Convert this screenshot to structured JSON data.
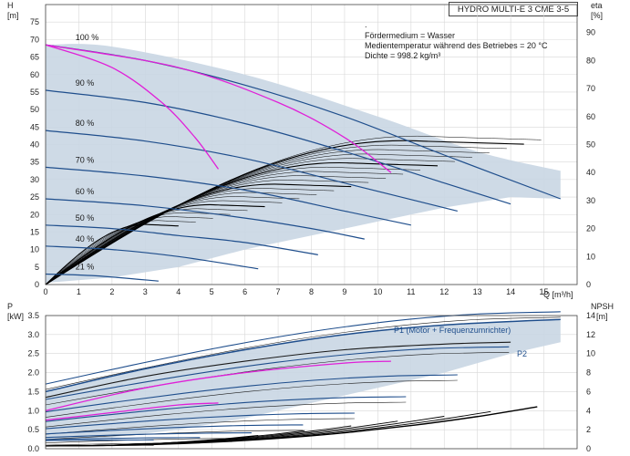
{
  "title": "HYDRO MULTI-E 3 CME 3-5",
  "info": {
    "dot": ".",
    "line1": "Fördermedium = Wasser",
    "line2": "Medientemperatur während des Betriebes = 20 °C",
    "line3": "Dichte = 998.2 kg/m³"
  },
  "colors": {
    "envelope": "#c9d6e3",
    "speed_curve": "#1f4e8c",
    "efficiency_curve": "#000000",
    "npsh_curve": "#000000",
    "highlight": "#e020d8"
  },
  "chart_data": [
    {
      "type": "line",
      "name": "head",
      "ylabel_top": "H",
      "ylabel_unit": "[m]",
      "y2label_top": "eta",
      "y2label_unit": "[%]",
      "xlabel": "Q [m³/h]",
      "xlim": [
        0,
        16
      ],
      "ylim": [
        0,
        80
      ],
      "y2lim": [
        0,
        100
      ],
      "xticks": [
        "0",
        "1",
        "2",
        "3",
        "4",
        "5",
        "6",
        "7",
        "8",
        "9",
        "10",
        "11",
        "12",
        "13",
        "14",
        "15"
      ],
      "yticks": [
        "0",
        "5",
        "10",
        "15",
        "20",
        "25",
        "30",
        "35",
        "40",
        "45",
        "50",
        "55",
        "60",
        "65",
        "70",
        "75"
      ],
      "y2ticks": [
        "0",
        "10",
        "20",
        "30",
        "40",
        "50",
        "60",
        "70",
        "80",
        "90"
      ],
      "grid": true,
      "speed_labels": [
        "100 %",
        "90 %",
        "80 %",
        "70 %",
        "60 %",
        "50 %",
        "40 %",
        "21 %"
      ],
      "speed_curves": [
        {
          "speed": 100,
          "x": [
            0,
            3,
            6,
            9,
            12,
            15.5
          ],
          "y": [
            68.5,
            64,
            57,
            48,
            37,
            24.5
          ]
        },
        {
          "speed": 90,
          "x": [
            0,
            3,
            6,
            9,
            12,
            14
          ],
          "y": [
            55.5,
            52,
            46,
            38,
            29,
            23
          ]
        },
        {
          "speed": 80,
          "x": [
            0,
            3,
            6,
            9,
            12.4
          ],
          "y": [
            44,
            41,
            36,
            29,
            21
          ]
        },
        {
          "speed": 70,
          "x": [
            0,
            3,
            6,
            9,
            11
          ],
          "y": [
            33.5,
            31,
            27,
            21,
            17
          ]
        },
        {
          "speed": 60,
          "x": [
            0,
            3,
            6,
            8,
            9.6
          ],
          "y": [
            24.5,
            22.5,
            19,
            16,
            13
          ]
        },
        {
          "speed": 50,
          "x": [
            0,
            2,
            4,
            6,
            8.2
          ],
          "y": [
            17,
            16,
            14,
            12,
            8.5
          ]
        },
        {
          "speed": 40,
          "x": [
            0,
            2,
            4,
            6.4
          ],
          "y": [
            11,
            10,
            8,
            4.5
          ]
        },
        {
          "speed": 21,
          "x": [
            0,
            1.5,
            3.4
          ],
          "y": [
            3,
            2.5,
            1
          ]
        }
      ],
      "efficiency_curves_top": {
        "x": [
          0,
          2,
          4,
          6,
          8,
          10,
          12,
          14
        ],
        "y": [
          0,
          25,
          40,
          48,
          51,
          51,
          48,
          41
        ]
      },
      "highlight_curves": [
        {
          "x": [
            0,
            2,
            3.5,
            4.5,
            5.2
          ],
          "y": [
            68.5,
            62,
            52,
            42,
            33
          ]
        },
        {
          "x": [
            0,
            4,
            7,
            9,
            10.4
          ],
          "y": [
            68.5,
            62,
            52,
            42,
            32
          ]
        }
      ]
    },
    {
      "type": "line",
      "name": "power_npsh",
      "ylabel_top": "P",
      "ylabel_unit": "[kW]",
      "y2label_top": "NPSH",
      "y2label_unit": "[m]",
      "xlim": [
        0,
        16
      ],
      "ylim": [
        0,
        3.5
      ],
      "y2lim": [
        0,
        14
      ],
      "yticks": [
        "0.0",
        "0.5",
        "1.0",
        "1.5",
        "2.0",
        "2.5",
        "3.0",
        "3.5"
      ],
      "y2ticks": [
        "0",
        "2",
        "4",
        "6",
        "8",
        "10",
        "12",
        "14"
      ],
      "grid": true,
      "series_labels": [
        "P1 (Motor + Frequenzumrichter)",
        "P2"
      ],
      "p1_curve": {
        "x": [
          0,
          3,
          6,
          9,
          12,
          15.5
        ],
        "y": [
          1.5,
          2.1,
          2.6,
          3.0,
          3.25,
          3.4
        ]
      },
      "p2_curve": {
        "x": [
          0,
          3,
          6,
          9,
          12,
          14
        ],
        "y": [
          1.35,
          1.9,
          2.3,
          2.6,
          2.75,
          2.8
        ]
      },
      "npsh_curve": {
        "x": [
          0,
          4,
          8,
          12,
          15
        ],
        "y": [
          0.5,
          1,
          1.8,
          3,
          4.4
        ]
      }
    }
  ]
}
